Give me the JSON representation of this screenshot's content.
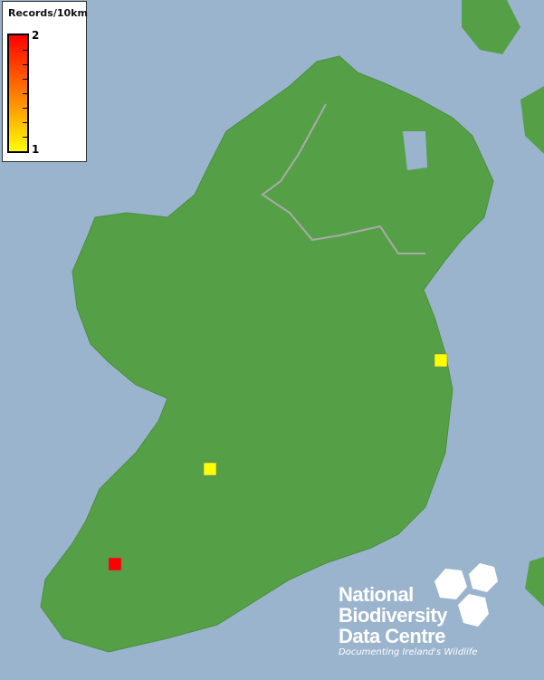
{
  "legend": {
    "title": "Records/10km",
    "max_label": "2",
    "min_label": "1",
    "color_max": "#ff0000",
    "color_min": "#ffff00"
  },
  "map": {
    "sea_color": "#9bb4cd",
    "land_color": "#55a046",
    "records": [
      {
        "value": 1,
        "color": "#ffff00",
        "place": ""
      },
      {
        "value": 1,
        "color": "#ffff00",
        "place": ""
      },
      {
        "value": 2,
        "color": "#ff0000",
        "place": ""
      }
    ]
  },
  "logo": {
    "line1": "National",
    "line2": "Biodiversity",
    "line3": "Data Centre",
    "tagline": "Documenting Ireland's Wildlife"
  }
}
